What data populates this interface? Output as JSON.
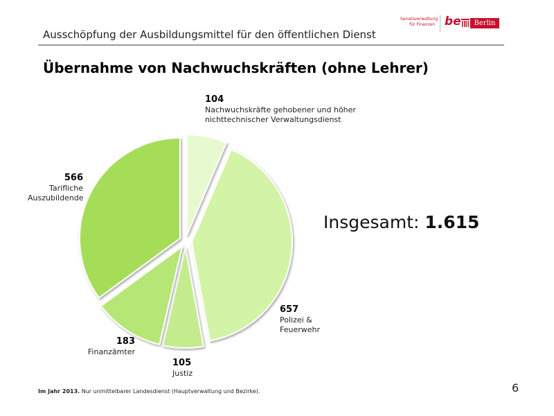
{
  "header": {
    "title": "Ausschöpfung der Ausbildungsmittel für den öffentlichen Dienst",
    "logo": {
      "department_line1": "Senatsverwaltung",
      "department_line2": "für Finanzen",
      "brand": "be",
      "city": "Berlin"
    }
  },
  "total": {
    "label": "Insgesamt: ",
    "value": "1.615"
  },
  "footnote": {
    "lead": "Im Jahr 2013.",
    "text": " Nur unmittelbarer Landesdienst (Hauptverwaltung und Bezirke)."
  },
  "page_number": "6",
  "colors": {
    "accent": "#c8102e",
    "slice_light": "#e6f9cf",
    "slice_mid": "#d3f3a6",
    "slice_dark": "#a6dd58"
  },
  "chart_data": {
    "type": "pie",
    "title": "Übernahme von Nachwuchskräften (ohne Lehrer)",
    "exploded": true,
    "slices": [
      {
        "value": 104,
        "value_label": "104",
        "label": "Nachwuchskräfte gehobener und höher nichttechnischer Verwaltungsdienst",
        "color": "#e6f9cf"
      },
      {
        "value": 657,
        "value_label": "657",
        "label": "Polizei & Feuerwehr",
        "color": "#d3f3a6"
      },
      {
        "value": 105,
        "value_label": "105",
        "label": "Justiz",
        "color": "#c4ec8e"
      },
      {
        "value": 183,
        "value_label": "183",
        "label": "Finanzämter",
        "color": "#b6e676"
      },
      {
        "value": 566,
        "value_label": "566",
        "label": "Tarifliche Auszubildende",
        "color": "#a6dd58"
      }
    ]
  }
}
